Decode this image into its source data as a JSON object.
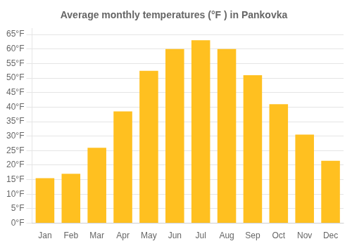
{
  "chart_data": {
    "type": "bar",
    "title": "Average monthly temperatures (°F ) in Pankovka",
    "categories": [
      "Jan",
      "Feb",
      "Mar",
      "Apr",
      "May",
      "Jun",
      "Jul",
      "Aug",
      "Sep",
      "Oct",
      "Nov",
      "Dec"
    ],
    "values": [
      15.5,
      17.0,
      26.0,
      38.5,
      52.5,
      60.0,
      63.0,
      60.0,
      51.0,
      41.0,
      30.5,
      21.5
    ],
    "color": "#FFC020",
    "ylim": [
      0,
      67
    ],
    "yticks": [
      {
        "value": 0,
        "label": "0°F"
      },
      {
        "value": 5,
        "label": "5°F"
      },
      {
        "value": 10,
        "label": "10°F"
      },
      {
        "value": 15,
        "label": "15°F"
      },
      {
        "value": 20,
        "label": "20°F"
      },
      {
        "value": 25,
        "label": "25°F"
      },
      {
        "value": 30,
        "label": "30°F"
      },
      {
        "value": 35,
        "label": "35°F"
      },
      {
        "value": 40,
        "label": "40°F"
      },
      {
        "value": 45,
        "label": "45°F"
      },
      {
        "value": 50,
        "label": "50°F"
      },
      {
        "value": 55,
        "label": "55°F"
      },
      {
        "value": 60,
        "label": "60°F"
      },
      {
        "value": 65,
        "label": "65°F"
      }
    ],
    "grid": true
  }
}
